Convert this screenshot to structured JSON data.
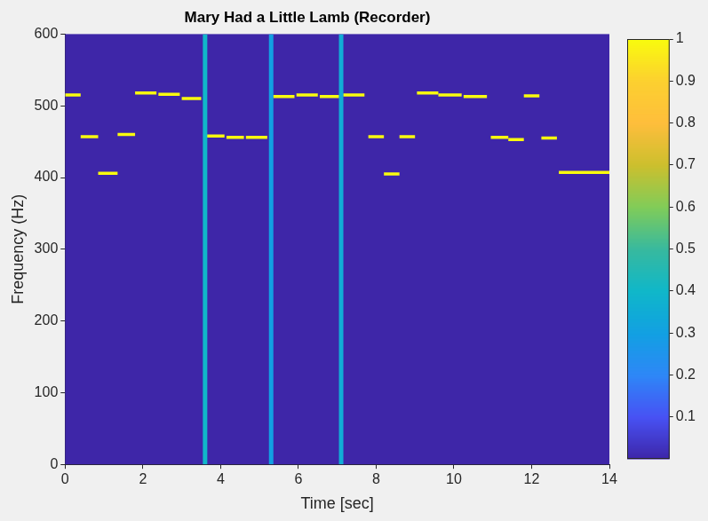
{
  "chart_data": {
    "type": "spectrogram",
    "title": "Mary Had a Little Lamb (Recorder)",
    "x_label": "Time [sec]",
    "y_label": "Frequency (Hz)",
    "xlim": [
      0,
      14
    ],
    "xticks": [
      0,
      2,
      4,
      6,
      8,
      10,
      12,
      14
    ],
    "ylim": [
      0,
      600
    ],
    "yticks": [
      0,
      100,
      200,
      300,
      400,
      500,
      600
    ],
    "notes": [
      {
        "start": 0.0,
        "end": 0.4,
        "frequency": 515,
        "level": 1
      },
      {
        "start": 0.4,
        "end": 0.85,
        "frequency": 457,
        "level": 1
      },
      {
        "start": 0.85,
        "end": 1.35,
        "frequency": 406,
        "level": 1
      },
      {
        "start": 1.35,
        "end": 1.8,
        "frequency": 460,
        "level": 1
      },
      {
        "start": 1.8,
        "end": 2.35,
        "frequency": 518,
        "level": 1
      },
      {
        "start": 2.4,
        "end": 2.95,
        "frequency": 516,
        "level": 1
      },
      {
        "start": 3.0,
        "end": 3.5,
        "frequency": 510,
        "level": 1
      },
      {
        "start": 3.6,
        "end": 4.1,
        "frequency": 458,
        "level": 1
      },
      {
        "start": 4.15,
        "end": 4.6,
        "frequency": 456,
        "level": 1
      },
      {
        "start": 4.65,
        "end": 5.2,
        "frequency": 456,
        "level": 1
      },
      {
        "start": 5.35,
        "end": 5.9,
        "frequency": 513,
        "level": 1
      },
      {
        "start": 5.95,
        "end": 6.5,
        "frequency": 515,
        "level": 1
      },
      {
        "start": 6.55,
        "end": 7.05,
        "frequency": 513,
        "level": 1
      },
      {
        "start": 7.15,
        "end": 7.7,
        "frequency": 515,
        "level": 1
      },
      {
        "start": 7.8,
        "end": 8.2,
        "frequency": 457,
        "level": 1
      },
      {
        "start": 8.2,
        "end": 8.6,
        "frequency": 405,
        "level": 1
      },
      {
        "start": 8.6,
        "end": 9.0,
        "frequency": 457,
        "level": 1
      },
      {
        "start": 9.05,
        "end": 9.6,
        "frequency": 518,
        "level": 1
      },
      {
        "start": 9.6,
        "end": 10.2,
        "frequency": 515,
        "level": 1
      },
      {
        "start": 10.25,
        "end": 10.85,
        "frequency": 513,
        "level": 1
      },
      {
        "start": 10.95,
        "end": 11.4,
        "frequency": 456,
        "level": 1
      },
      {
        "start": 11.4,
        "end": 11.8,
        "frequency": 453,
        "level": 1
      },
      {
        "start": 11.8,
        "end": 12.2,
        "frequency": 514,
        "level": 1
      },
      {
        "start": 12.25,
        "end": 12.65,
        "frequency": 455,
        "level": 1
      },
      {
        "start": 12.7,
        "end": 14.0,
        "frequency": 407,
        "level": 1
      }
    ],
    "bursts": [
      {
        "time": 3.6,
        "fmin": 0,
        "fmax": 600,
        "level": 0.4
      },
      {
        "time": 5.3,
        "fmin": 0,
        "fmax": 600,
        "level": 0.3
      },
      {
        "time": 7.1,
        "fmin": 0,
        "fmax": 600,
        "level": 0.35
      }
    ],
    "colorbar": {
      "range": [
        0,
        1
      ],
      "ticks": [
        0.1,
        0.2,
        0.3,
        0.4,
        0.5,
        0.6,
        0.7,
        0.8,
        0.9,
        1
      ]
    }
  }
}
